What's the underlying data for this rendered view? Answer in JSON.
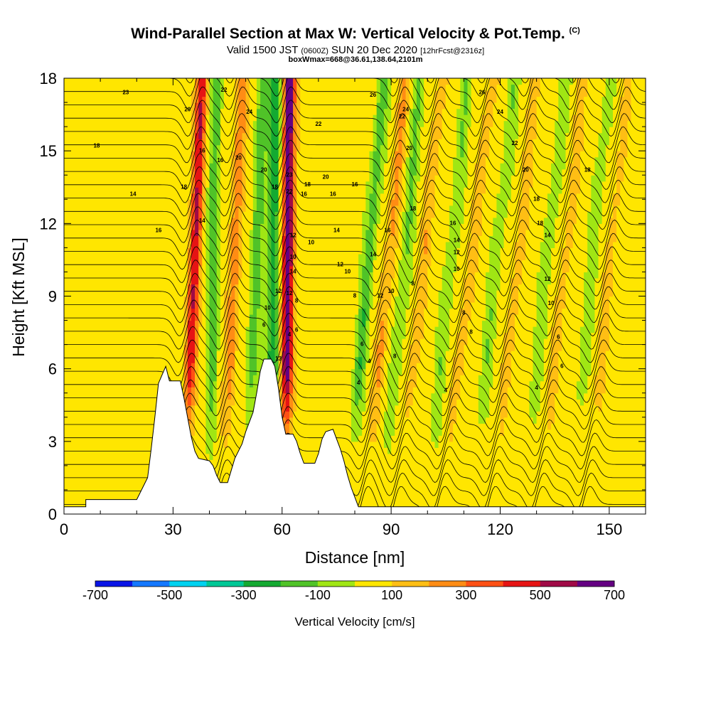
{
  "title": {
    "main": "Wind-Parallel Section at Max W: Vertical Velocity & Pot.Temp.",
    "copyright": "(C)",
    "valid_a": "Valid 1500 JST",
    "valid_b": "(0600Z)",
    "valid_c": "SUN 20 Dec 2020",
    "valid_d": "[12hrFcst@2316z]",
    "box": "boxWmax=668@36.61,138.64,2101m"
  },
  "chart_data": {
    "type": "heatmap",
    "xlabel": "Distance [nm]",
    "ylabel": "Height [Kft MSL]",
    "xlim": [
      0,
      160
    ],
    "ylim": [
      0,
      18
    ],
    "x_ticks": [
      0,
      30,
      60,
      90,
      120,
      150
    ],
    "y_ticks": [
      0,
      3,
      6,
      9,
      12,
      15,
      18
    ],
    "colorbar": {
      "title": "Vertical Velocity [cm/s]",
      "labels": [
        "-700",
        "-500",
        "-300",
        "-100",
        "100",
        "300",
        "500",
        "700"
      ],
      "label_values": [
        -700,
        -500,
        -300,
        -100,
        100,
        300,
        500,
        700
      ],
      "bin_edges": [
        -700,
        -600,
        -500,
        -400,
        -300,
        -200,
        -100,
        0,
        100,
        200,
        300,
        400,
        500,
        600,
        700
      ],
      "colors": [
        "#0a14e6",
        "#1478ff",
        "#00d2f0",
        "#00c896",
        "#14aa32",
        "#50c328",
        "#a0e614",
        "#ffe600",
        "#ffbe14",
        "#ff8c14",
        "#ff5014",
        "#e61414",
        "#a00a46",
        "#640082"
      ]
    },
    "terrain_kft": [
      [
        0,
        0.3
      ],
      [
        6,
        0.3
      ],
      [
        6,
        0.6
      ],
      [
        20,
        0.6
      ],
      [
        21,
        0.9
      ],
      [
        23,
        1.5
      ],
      [
        24,
        2.7
      ],
      [
        25,
        4.0
      ],
      [
        26,
        5.4
      ],
      [
        28,
        6.1
      ],
      [
        29,
        5.5
      ],
      [
        32,
        5.5
      ],
      [
        33,
        4.8
      ],
      [
        34,
        4.0
      ],
      [
        35,
        3.2
      ],
      [
        36,
        2.6
      ],
      [
        37,
        2.3
      ],
      [
        40,
        2.2
      ],
      [
        41,
        2.0
      ],
      [
        42,
        1.6
      ],
      [
        43,
        1.3
      ],
      [
        45,
        1.3
      ],
      [
        46,
        1.8
      ],
      [
        47,
        2.3
      ],
      [
        49,
        2.9
      ],
      [
        50,
        3.4
      ],
      [
        52,
        4.2
      ],
      [
        53,
        5.0
      ],
      [
        54,
        5.9
      ],
      [
        55,
        6.4
      ],
      [
        57,
        6.4
      ],
      [
        58,
        6.1
      ],
      [
        59,
        5.2
      ],
      [
        60,
        4.0
      ],
      [
        61,
        3.3
      ],
      [
        63,
        3.3
      ],
      [
        64,
        3.0
      ],
      [
        65,
        2.5
      ],
      [
        66,
        2.1
      ],
      [
        69,
        2.1
      ],
      [
        70,
        2.5
      ],
      [
        71,
        3.1
      ],
      [
        72,
        3.4
      ],
      [
        74,
        3.5
      ],
      [
        75,
        3.1
      ],
      [
        76,
        2.7
      ],
      [
        77,
        2.2
      ],
      [
        78,
        1.6
      ],
      [
        79,
        1.1
      ],
      [
        80,
        0.7
      ],
      [
        81,
        0.3
      ],
      [
        160,
        0.3
      ]
    ],
    "updraft_bands": [
      {
        "x_base": 33,
        "x_top": 38,
        "w": 450
      },
      {
        "x_base": 44,
        "x_top": 49,
        "w": 250
      },
      {
        "x_base": 61,
        "x_top": 62,
        "w": 668
      },
      {
        "x_base": 83,
        "x_top": 94,
        "w": 180
      },
      {
        "x_base": 92,
        "x_top": 104,
        "w": 140
      },
      {
        "x_base": 104,
        "x_top": 118,
        "w": 130
      },
      {
        "x_base": 118,
        "x_top": 130,
        "w": 120
      },
      {
        "x_base": 131,
        "x_top": 143,
        "w": 110
      },
      {
        "x_base": 144,
        "x_top": 155,
        "w": 100
      }
    ],
    "downdraft_bands": [
      {
        "x_base": 40,
        "x_top": 42,
        "w": -200
      },
      {
        "x_base": 50,
        "x_top": 55,
        "w": -200
      },
      {
        "x_base": 57,
        "x_top": 58,
        "w": -350
      },
      {
        "x_base": 78,
        "x_top": 88,
        "w": -220
      },
      {
        "x_base": 88,
        "x_top": 98,
        "w": -150
      },
      {
        "x_base": 100,
        "x_top": 111,
        "w": -130
      },
      {
        "x_base": 112,
        "x_top": 124,
        "w": -120
      },
      {
        "x_base": 126,
        "x_top": 138,
        "w": -110
      },
      {
        "x_base": 139,
        "x_top": 150,
        "w": -100
      }
    ],
    "isentrope_labels": [
      {
        "x": 17,
        "y": 17.4,
        "text": "23"
      },
      {
        "x": 9,
        "y": 15.2,
        "text": "18"
      },
      {
        "x": 19,
        "y": 13.2,
        "text": "14"
      },
      {
        "x": 26,
        "y": 11.7,
        "text": "16"
      },
      {
        "x": 34,
        "y": 16.7,
        "text": "20"
      },
      {
        "x": 38,
        "y": 15.0,
        "text": "16"
      },
      {
        "x": 33,
        "y": 13.5,
        "text": "18"
      },
      {
        "x": 38,
        "y": 12.1,
        "text": "14"
      },
      {
        "x": 43,
        "y": 14.6,
        "text": "16"
      },
      {
        "x": 44,
        "y": 17.5,
        "text": "22"
      },
      {
        "x": 48,
        "y": 14.7,
        "text": "20"
      },
      {
        "x": 51,
        "y": 16.6,
        "text": "24"
      },
      {
        "x": 55,
        "y": 14.2,
        "text": "20"
      },
      {
        "x": 58,
        "y": 13.5,
        "text": "18"
      },
      {
        "x": 62,
        "y": 14.0,
        "text": "23"
      },
      {
        "x": 62,
        "y": 13.3,
        "text": "22"
      },
      {
        "x": 63,
        "y": 11.5,
        "text": "12"
      },
      {
        "x": 66,
        "y": 13.2,
        "text": "16"
      },
      {
        "x": 67,
        "y": 13.6,
        "text": "18"
      },
      {
        "x": 68,
        "y": 11.2,
        "text": "10"
      },
      {
        "x": 63,
        "y": 10.6,
        "text": "10"
      },
      {
        "x": 63,
        "y": 10.0,
        "text": "14"
      },
      {
        "x": 62,
        "y": 9.1,
        "text": "12"
      },
      {
        "x": 59,
        "y": 9.2,
        "text": "12"
      },
      {
        "x": 56,
        "y": 8.5,
        "text": "10"
      },
      {
        "x": 55,
        "y": 7.8,
        "text": "6"
      },
      {
        "x": 59,
        "y": 6.4,
        "text": "13"
      },
      {
        "x": 62,
        "y": 7.4,
        "text": "4"
      },
      {
        "x": 64,
        "y": 8.8,
        "text": "8"
      },
      {
        "x": 64,
        "y": 7.6,
        "text": "6"
      },
      {
        "x": 70,
        "y": 16.1,
        "text": "22"
      },
      {
        "x": 72,
        "y": 13.9,
        "text": "20"
      },
      {
        "x": 74,
        "y": 13.2,
        "text": "16"
      },
      {
        "x": 75,
        "y": 11.7,
        "text": "14"
      },
      {
        "x": 76,
        "y": 10.3,
        "text": "12"
      },
      {
        "x": 78,
        "y": 10.0,
        "text": "10"
      },
      {
        "x": 80,
        "y": 13.6,
        "text": "16"
      },
      {
        "x": 80,
        "y": 9.0,
        "text": "8"
      },
      {
        "x": 82,
        "y": 7.0,
        "text": "6"
      },
      {
        "x": 81,
        "y": 5.4,
        "text": "4"
      },
      {
        "x": 84,
        "y": 6.3,
        "text": "4"
      },
      {
        "x": 85,
        "y": 17.3,
        "text": "26"
      },
      {
        "x": 85,
        "y": 10.7,
        "text": "14"
      },
      {
        "x": 87,
        "y": 9.0,
        "text": "12"
      },
      {
        "x": 90,
        "y": 9.2,
        "text": "10"
      },
      {
        "x": 89,
        "y": 11.7,
        "text": "16"
      },
      {
        "x": 91,
        "y": 6.5,
        "text": "8"
      },
      {
        "x": 93,
        "y": 16.4,
        "text": "22"
      },
      {
        "x": 94,
        "y": 16.7,
        "text": "24"
      },
      {
        "x": 95,
        "y": 15.1,
        "text": "20"
      },
      {
        "x": 96,
        "y": 12.6,
        "text": "18"
      },
      {
        "x": 96,
        "y": 9.5,
        "text": "8"
      },
      {
        "x": 107,
        "y": 12.0,
        "text": "16"
      },
      {
        "x": 108,
        "y": 11.3,
        "text": "14"
      },
      {
        "x": 108,
        "y": 10.8,
        "text": "12"
      },
      {
        "x": 108,
        "y": 10.1,
        "text": "10"
      },
      {
        "x": 105,
        "y": 5.1,
        "text": "4"
      },
      {
        "x": 110,
        "y": 8.3,
        "text": "8"
      },
      {
        "x": 112,
        "y": 7.5,
        "text": "8"
      },
      {
        "x": 115,
        "y": 17.4,
        "text": "26"
      },
      {
        "x": 120,
        "y": 16.6,
        "text": "24"
      },
      {
        "x": 124,
        "y": 15.3,
        "text": "22"
      },
      {
        "x": 127,
        "y": 14.2,
        "text": "20"
      },
      {
        "x": 130,
        "y": 13.0,
        "text": "18"
      },
      {
        "x": 131,
        "y": 12.0,
        "text": "18"
      },
      {
        "x": 133,
        "y": 11.5,
        "text": "14"
      },
      {
        "x": 133,
        "y": 9.7,
        "text": "12"
      },
      {
        "x": 134,
        "y": 8.7,
        "text": "10"
      },
      {
        "x": 136,
        "y": 7.3,
        "text": "6"
      },
      {
        "x": 130,
        "y": 5.2,
        "text": "4"
      },
      {
        "x": 137,
        "y": 6.1,
        "text": "6"
      },
      {
        "x": 144,
        "y": 14.2,
        "text": "18"
      }
    ]
  }
}
